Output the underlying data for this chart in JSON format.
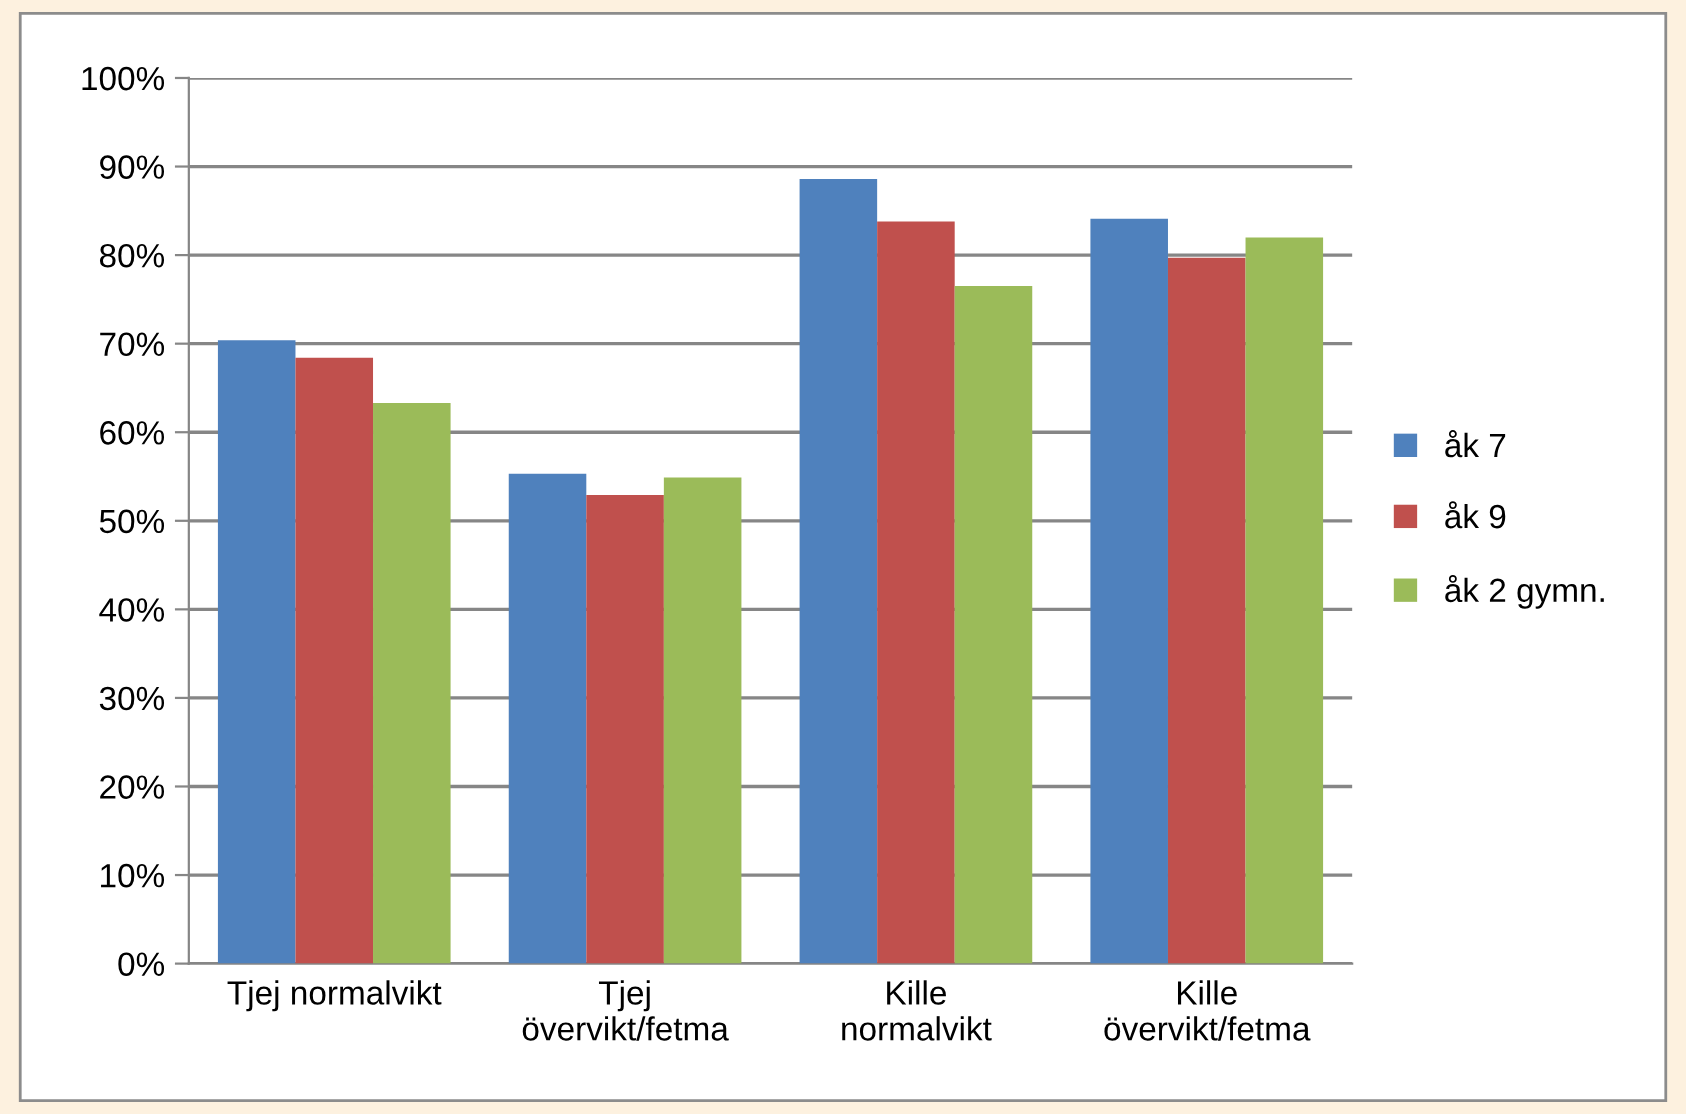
{
  "chart_data": {
    "type": "bar",
    "categories": [
      "Tjej normalvikt",
      "Tjej\növervikt/fetma",
      "Kille\nnormalvikt",
      "Kille\növervikt/fetma"
    ],
    "series": [
      {
        "name": "åk 7",
        "color": "#4f81bd",
        "values": [
          70.4,
          55.3,
          88.6,
          84.1
        ]
      },
      {
        "name": "åk 9",
        "color": "#c0504d",
        "values": [
          68.4,
          52.9,
          83.8,
          79.7
        ]
      },
      {
        "name": "åk 2 gymn.",
        "color": "#9bbb59",
        "values": [
          63.3,
          54.9,
          76.5,
          82.0
        ]
      }
    ],
    "ylim": [
      0,
      100
    ],
    "yticks": [
      {
        "value": 0,
        "label": "0%"
      },
      {
        "value": 10,
        "label": "10%"
      },
      {
        "value": 20,
        "label": "20%"
      },
      {
        "value": 30,
        "label": "30%"
      },
      {
        "value": 40,
        "label": "40%"
      },
      {
        "value": 50,
        "label": "50%"
      },
      {
        "value": 60,
        "label": "60%"
      },
      {
        "value": 70,
        "label": "70%"
      },
      {
        "value": 80,
        "label": "80%"
      },
      {
        "value": 90,
        "label": "90%"
      },
      {
        "value": 100,
        "label": "100%"
      }
    ],
    "grid": "y",
    "legend": "right"
  }
}
